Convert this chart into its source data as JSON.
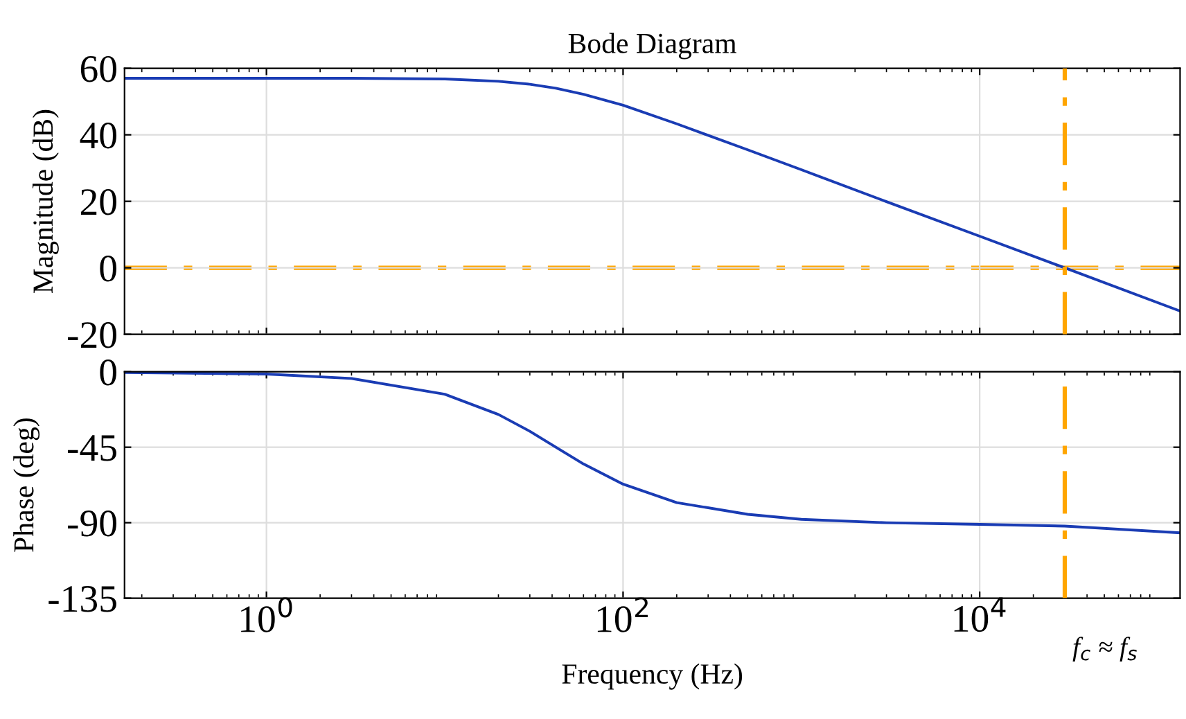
{
  "chart_data": [
    {
      "type": "line",
      "title": "Bode Diagram",
      "ylabel": "Magnitude (dB)",
      "x": [
        0.16,
        1,
        3,
        10,
        20,
        30,
        42,
        60,
        100,
        200,
        500,
        1000,
        3000,
        10000,
        30000,
        133000
      ],
      "series": [
        {
          "color": "#1a3cb4",
          "values": [
            57,
            57,
            57,
            56.8,
            56.1,
            55.2,
            54,
            52.2,
            48.9,
            43.3,
            35.5,
            29.5,
            19.9,
            9.5,
            0,
            -13
          ]
        }
      ],
      "xlim": [
        0.16,
        133000
      ],
      "ylim": [
        -20,
        60
      ],
      "yticks": [
        -20,
        0,
        20,
        40,
        60
      ],
      "log": "x",
      "grid": true,
      "tick_labels": "y",
      "ref_lines": [
        {
          "axis": "y",
          "value": 0,
          "color": "#ffa500",
          "line_style": "dashed"
        },
        {
          "axis": "x",
          "value": 30000,
          "color": "#ffa500",
          "line_style": "dashed"
        }
      ]
    },
    {
      "type": "line",
      "xlabel": "Frequency (Hz)",
      "ylabel": "Phase (deg)",
      "x": [
        0.16,
        1,
        3,
        10,
        20,
        30,
        42,
        60,
        100,
        200,
        500,
        1000,
        3000,
        10000,
        30000,
        133000
      ],
      "series": [
        {
          "color": "#1a3cb4",
          "values": [
            -0.5,
            -1.4,
            -4,
            -13.4,
            -25.5,
            -35.5,
            -45,
            -55,
            -67,
            -78,
            -85,
            -88,
            -90,
            -91,
            -92,
            -96
          ]
        }
      ],
      "xlim": [
        0.16,
        133000
      ],
      "xticks": [
        {
          "value": 1,
          "label": "10$^{0}$"
        },
        {
          "value": 100,
          "label": "10$^{2}$"
        },
        {
          "value": 10000,
          "label": "10$^{4}$"
        }
      ],
      "ylim": [
        -135,
        0
      ],
      "yticks": [
        -135,
        -90,
        -45,
        0
      ],
      "log": "x",
      "grid": true,
      "ref_lines": [
        {
          "axis": "x",
          "value": 30000,
          "label": "f$_{c}$ ≈ f$_{s}$",
          "color": "#ffa500",
          "line_style": "dashed"
        }
      ]
    }
  ]
}
